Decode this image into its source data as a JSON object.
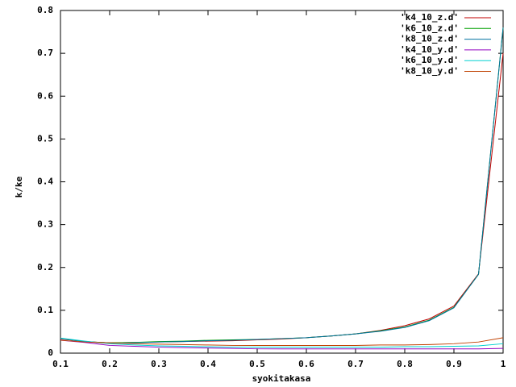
{
  "chart_data": {
    "type": "line",
    "x_label": "syokitakasa",
    "y_label": "k/ke",
    "x": [
      0.1,
      0.15,
      0.2,
      0.25,
      0.3,
      0.35,
      0.4,
      0.45,
      0.5,
      0.55,
      0.6,
      0.65,
      0.7,
      0.75,
      0.8,
      0.85,
      0.9,
      0.95,
      1.0
    ],
    "series": [
      {
        "name": "'k4_10_z.d'",
        "color": "#c00000",
        "values": [
          0.033,
          0.027,
          0.024,
          0.025,
          0.026,
          0.027,
          0.028,
          0.029,
          0.031,
          0.033,
          0.036,
          0.04,
          0.045,
          0.053,
          0.064,
          0.08,
          0.11,
          0.185,
          0.7
        ]
      },
      {
        "name": "'k6_10_z.d'",
        "color": "#00a000",
        "values": [
          0.034,
          0.027,
          0.024,
          0.025,
          0.027,
          0.028,
          0.03,
          0.031,
          0.032,
          0.034,
          0.036,
          0.04,
          0.045,
          0.052,
          0.061,
          0.077,
          0.107,
          0.184,
          0.76
        ]
      },
      {
        "name": "'k8_10_z.d'",
        "color": "#0070a0",
        "values": [
          0.034,
          0.027,
          0.023,
          0.024,
          0.026,
          0.027,
          0.029,
          0.03,
          0.032,
          0.034,
          0.036,
          0.04,
          0.045,
          0.051,
          0.06,
          0.076,
          0.106,
          0.184,
          0.76
        ]
      },
      {
        "name": "'k4_10_y.d'",
        "color": "#9000c0",
        "values": [
          0.03,
          0.025,
          0.018,
          0.016,
          0.014,
          0.013,
          0.012,
          0.011,
          0.01,
          0.01,
          0.01,
          0.01,
          0.01,
          0.01,
          0.01,
          0.01,
          0.01,
          0.01,
          0.011
        ]
      },
      {
        "name": "'k6_10_y.d'",
        "color": "#00d0d0",
        "values": [
          0.035,
          0.028,
          0.022,
          0.019,
          0.017,
          0.016,
          0.015,
          0.014,
          0.014,
          0.014,
          0.014,
          0.014,
          0.014,
          0.014,
          0.015,
          0.015,
          0.016,
          0.017,
          0.022
        ]
      },
      {
        "name": "'k8_10_y.d'",
        "color": "#c04000",
        "values": [
          0.03,
          0.026,
          0.024,
          0.022,
          0.021,
          0.02,
          0.019,
          0.018,
          0.018,
          0.018,
          0.018,
          0.018,
          0.018,
          0.019,
          0.019,
          0.02,
          0.022,
          0.026,
          0.036
        ]
      }
    ],
    "xlim": [
      0.1,
      1
    ],
    "xticks": [
      0.1,
      0.2,
      0.3,
      0.4,
      0.5,
      0.6,
      0.7,
      0.8,
      0.9,
      1
    ],
    "ylim": [
      0,
      0.8
    ],
    "yticks": [
      0,
      0.1,
      0.2,
      0.3,
      0.4,
      0.5,
      0.6,
      0.7,
      0.8
    ],
    "legend": "top-right"
  }
}
